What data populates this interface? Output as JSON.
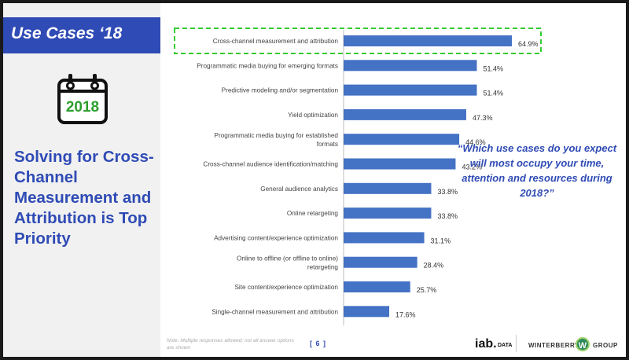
{
  "sidebar": {
    "title": "Use Cases ‘18",
    "calendar_year": "2018",
    "headline": "Solving for Cross-Channel Measurement and Attribution is Top Priority"
  },
  "question": "“Which use cases do you expect will most occupy your time, attention and resources during 2018?”",
  "note": "Note: Multiple responses allowed; not all answer options are shown",
  "page_number": "[ 6 ]",
  "logos": {
    "iab": "iab.",
    "iab_sub": "DATA",
    "winterberry": "WINTERBERRY",
    "winterberry_mark": "W",
    "group": "GROUP"
  },
  "colors": {
    "bar": "#4472c4",
    "title_bar": "#2f4bb5",
    "highlight": "#33cc33"
  },
  "chart_data": {
    "type": "bar",
    "orientation": "horizontal",
    "categories": [
      "Cross-channel measurement and attribution",
      "Programmatic media buying for emerging formats",
      "Predictive modeling and/or segmentation",
      "Yield optimization",
      "Programmatic media buying for established formats",
      "Cross-channel audience identification/matching",
      "General audience analytics",
      "Online retargeting",
      "Advertising content/experience optimization",
      "Online to offline (or offline to online) retargeting",
      "Site content/experience optimization",
      "Single-channel measurement and attribution"
    ],
    "values": [
      64.9,
      51.4,
      51.4,
      47.3,
      44.6,
      43.2,
      33.8,
      33.8,
      31.1,
      28.4,
      25.7,
      17.6
    ],
    "value_labels": [
      "64.9%",
      "51.4%",
      "51.4%",
      "47.3%",
      "44.6%",
      "43.2%",
      "33.8%",
      "33.8%",
      "31.1%",
      "28.4%",
      "25.7%",
      "17.6%"
    ],
    "highlighted_index": 0,
    "xlim": [
      0,
      70
    ]
  }
}
